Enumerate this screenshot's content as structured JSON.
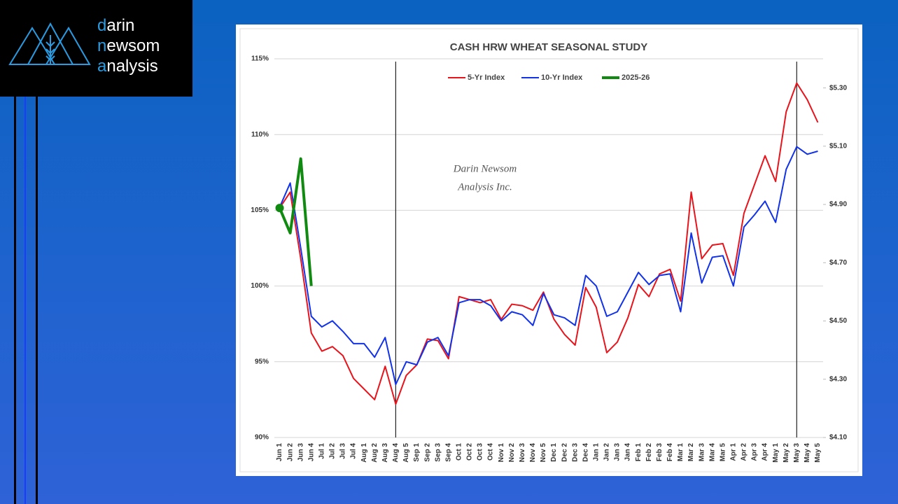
{
  "logo": [
    "darin",
    "newsom",
    "analysis"
  ],
  "chart_data": {
    "type": "line",
    "title": "CASH HRW WHEAT SEASONAL STUDY",
    "watermark": [
      "Darin Newsom",
      "Analysis Inc."
    ],
    "categories": [
      "Jun 1",
      "Jun 2",
      "Jun 3",
      "Jun 4",
      "Jul 1",
      "Jul 2",
      "Jul 3",
      "Jul 4",
      "Aug 1",
      "Aug 2",
      "Aug 3",
      "Aug 4",
      "Aug 5",
      "Sep 1",
      "Sep 2",
      "Sep 3",
      "Sep 4",
      "Oct 1",
      "Oct 2",
      "Oct 3",
      "Oct 4",
      "Nov 1",
      "Nov 2",
      "Nov 3",
      "Nov 4",
      "Nov 5",
      "Dec 1",
      "Dec 2",
      "Dec 3",
      "Dec 4",
      "Jan 1",
      "Jan 2",
      "Jan 3",
      "Jan 4",
      "Feb 1",
      "Feb 2",
      "Feb 3",
      "Feb 4",
      "Mar 1",
      "Mar 2",
      "Mar 3",
      "Mar 4",
      "Mar 5",
      "Apr 1",
      "Apr 2",
      "Apr 3",
      "Apr 4",
      "May 1",
      "May 2",
      "May 3",
      "May 4",
      "May 5"
    ],
    "series": [
      {
        "name": "5-Yr Index",
        "color": "#e8141c",
        "values": [
          105.15,
          106.2,
          101.8,
          96.9,
          95.7,
          96.0,
          95.4,
          93.9,
          93.2,
          92.5,
          94.7,
          92.2,
          94.1,
          94.8,
          96.5,
          96.4,
          95.2,
          99.3,
          99.1,
          98.9,
          99.1,
          97.8,
          98.8,
          98.7,
          98.4,
          99.6,
          97.8,
          96.8,
          96.1,
          99.9,
          98.6,
          95.6,
          96.3,
          97.9,
          100.1,
          99.3,
          100.8,
          101.1,
          99.0,
          106.2,
          101.8,
          102.7,
          102.8,
          100.7,
          104.8,
          106.7,
          108.6,
          106.9,
          111.5,
          113.4,
          112.3,
          110.8
        ]
      },
      {
        "name": "10-Yr Index",
        "color": "#1232e8",
        "values": [
          105.2,
          106.8,
          102.5,
          98.0,
          97.3,
          97.7,
          97.0,
          96.2,
          96.2,
          95.3,
          96.6,
          93.5,
          95.0,
          94.8,
          96.3,
          96.6,
          95.4,
          98.9,
          99.1,
          99.1,
          98.7,
          97.7,
          98.3,
          98.1,
          97.4,
          99.5,
          98.1,
          97.9,
          97.4,
          100.7,
          100.0,
          98.0,
          98.3,
          99.6,
          100.9,
          100.1,
          100.7,
          100.8,
          98.3,
          103.5,
          100.2,
          101.9,
          102.0,
          100.0,
          103.9,
          104.7,
          105.6,
          104.2,
          107.7,
          109.2,
          108.7,
          108.9
        ]
      },
      {
        "name": "2025-26",
        "color": "#108a10",
        "width": 4,
        "values": [
          105.15,
          103.5,
          108.4,
          100.0,
          null,
          null,
          null,
          null,
          null,
          null,
          null,
          null,
          null,
          null,
          null,
          null,
          null,
          null,
          null,
          null,
          null,
          null,
          null,
          null,
          null,
          null,
          null,
          null,
          null,
          null,
          null,
          null,
          null,
          null,
          null,
          null,
          null,
          null,
          null,
          null,
          null,
          null,
          null,
          null,
          null,
          null,
          null,
          null,
          null,
          null,
          null,
          null
        ]
      }
    ],
    "vertical_lines": [
      "Aug 4",
      "May 3"
    ],
    "ylim": [
      90,
      115
    ],
    "yticks": [
      {
        "value": 90,
        "label": "90%"
      },
      {
        "value": 95,
        "label": "95%"
      },
      {
        "value": 100,
        "label": "100%"
      },
      {
        "value": 105,
        "label": "105%"
      },
      {
        "value": 110,
        "label": "110%"
      },
      {
        "value": 115,
        "label": "115%"
      }
    ],
    "y2lim": [
      4.1,
      5.4
    ],
    "y2ticks": [
      {
        "value": 4.1,
        "label": "$4.10"
      },
      {
        "value": 4.3,
        "label": "$4.30"
      },
      {
        "value": 4.5,
        "label": "$4.50"
      },
      {
        "value": 4.7,
        "label": "$4.70"
      },
      {
        "value": 4.9,
        "label": "$4.90"
      },
      {
        "value": 5.1,
        "label": "$5.10"
      },
      {
        "value": 5.3,
        "label": "$5.30"
      }
    ],
    "grid": true,
    "legend": "top"
  }
}
